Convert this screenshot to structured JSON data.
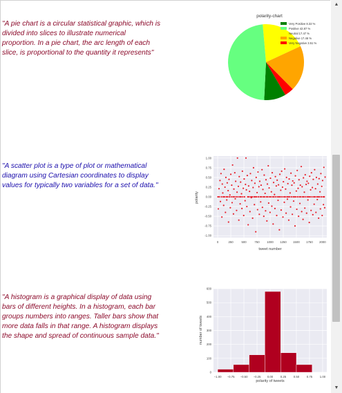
{
  "texts": {
    "pie_quote": "\"A pie chart is a circular statistical graphic, which is divided into slices to illustrate numerical proportion. In a pie chart, the arc length of each slice, is proportional to the quantity it represents\"",
    "scatter_quote": "\"A scatter plot is a type of plot or mathematical diagram using Cartesian coordinates to display values for typically two variables for a set of data.\"",
    "hist_quote": "\"A histogram is a graphical display of data using bars of different heights. In a histogram, each bar groups numbers into ranges. Taller bars show that more data falls in that range. A histogram displays the shape and spread of continuous sample data.\""
  },
  "scrollbar": {
    "up_icon": "triangle-up-icon",
    "down_icon": "triangle-down-icon"
  },
  "chart_data": [
    {
      "type": "pie",
      "title": "polarity-chart",
      "legend_position": "top-right",
      "slices": [
        {
          "label": "Very Positive 8.32 %",
          "value": 8.32,
          "color": "#008000"
        },
        {
          "label": "Positive 42.87 %",
          "value": 42.87,
          "color": "#66ff80"
        },
        {
          "label": "Neutral 17.47 %",
          "value": 17.47,
          "color": "#ffff00"
        },
        {
          "label": "Negative 17.46 %",
          "value": 17.46,
          "color": "#ffa500"
        },
        {
          "label": "Very Negative 3.51 %",
          "value": 3.51,
          "color": "#ff0000"
        }
      ],
      "draw_order": [
        2,
        3,
        4,
        0,
        1
      ],
      "start_angle_deg": -95
    },
    {
      "type": "scatter",
      "xlabel": "tweet number",
      "ylabel": "polarity",
      "xlim": [
        -80,
        2080
      ],
      "ylim": [
        -1.05,
        1.05
      ],
      "xticks": [
        0,
        250,
        500,
        750,
        1000,
        1250,
        1500,
        1750,
        2000
      ],
      "yticks": [
        -1.0,
        -0.75,
        -0.5,
        -0.25,
        0.0,
        0.25,
        0.5,
        0.75,
        1.0
      ],
      "ytick_labels": [
        "-1.00",
        "-0.75",
        "-0.50",
        "-0.25",
        "0.00",
        "0.25",
        "0.50",
        "0.75",
        "1.00"
      ],
      "grid": true,
      "color": "#e8232e",
      "points": [
        [
          5,
          0.0
        ],
        [
          12,
          -0.31
        ],
        [
          25,
          0.21
        ],
        [
          31,
          0.0
        ],
        [
          44,
          0.42
        ],
        [
          52,
          -0.12
        ],
        [
          63,
          0.6
        ],
        [
          71,
          0.0
        ],
        [
          80,
          -0.52
        ],
        [
          88,
          0.33
        ],
        [
          97,
          0.1
        ],
        [
          105,
          0.0
        ],
        [
          114,
          -0.22
        ],
        [
          122,
          0.71
        ],
        [
          131,
          0.0
        ],
        [
          139,
          0.25
        ],
        [
          148,
          -0.4
        ],
        [
          156,
          0.5
        ],
        [
          165,
          0.0
        ],
        [
          173,
          -0.08
        ],
        [
          182,
          0.36
        ],
        [
          190,
          0.0
        ],
        [
          199,
          0.16
        ],
        [
          207,
          -0.65
        ],
        [
          216,
          0.45
        ],
        [
          224,
          0.0
        ],
        [
          233,
          0.05
        ],
        [
          241,
          -0.28
        ],
        [
          250,
          0.58
        ],
        [
          258,
          0.0
        ],
        [
          267,
          0.3
        ],
        [
          275,
          -0.15
        ],
        [
          284,
          0.82
        ],
        [
          292,
          0.0
        ],
        [
          301,
          -0.44
        ],
        [
          309,
          0.2
        ],
        [
          318,
          0.0
        ],
        [
          326,
          0.62
        ],
        [
          335,
          -0.05
        ],
        [
          343,
          0.4
        ],
        [
          352,
          0.0
        ],
        [
          360,
          -0.35
        ],
        [
          369,
          0.12
        ],
        [
          377,
          1.0
        ],
        [
          386,
          0.0
        ],
        [
          394,
          0.27
        ],
        [
          403,
          -0.6
        ],
        [
          411,
          0.52
        ],
        [
          420,
          0.0
        ],
        [
          428,
          -0.18
        ],
        [
          437,
          0.38
        ],
        [
          445,
          0.0
        ],
        [
          454,
          0.08
        ],
        [
          462,
          -0.3
        ],
        [
          471,
          0.66
        ],
        [
          479,
          0.0
        ],
        [
          488,
          0.22
        ],
        [
          496,
          -0.48
        ],
        [
          505,
          0.46
        ],
        [
          513,
          0.0
        ],
        [
          522,
          -0.1
        ],
        [
          530,
          0.32
        ],
        [
          539,
          1.0
        ],
        [
          547,
          0.18
        ],
        [
          556,
          -0.25
        ],
        [
          564,
          0.55
        ],
        [
          573,
          0.0
        ],
        [
          581,
          -0.72
        ],
        [
          590,
          0.28
        ],
        [
          598,
          0.0
        ],
        [
          607,
          0.14
        ],
        [
          615,
          -0.38
        ],
        [
          624,
          0.6
        ],
        [
          632,
          0.0
        ],
        [
          641,
          -0.02
        ],
        [
          649,
          0.42
        ],
        [
          658,
          0.0
        ],
        [
          666,
          -0.55
        ],
        [
          675,
          0.24
        ],
        [
          683,
          0.75
        ],
        [
          692,
          0.0
        ],
        [
          700,
          -0.2
        ],
        [
          709,
          0.35
        ],
        [
          717,
          0.0
        ],
        [
          726,
          -0.9
        ],
        [
          734,
          0.5
        ],
        [
          743,
          0.0
        ],
        [
          751,
          0.11
        ],
        [
          760,
          -0.33
        ],
        [
          768,
          0.64
        ],
        [
          777,
          0.0
        ],
        [
          785,
          0.26
        ],
        [
          794,
          -0.45
        ],
        [
          802,
          0.4
        ],
        [
          811,
          0.0
        ],
        [
          819,
          -0.13
        ],
        [
          828,
          0.3
        ],
        [
          836,
          0.0
        ],
        [
          845,
          0.7
        ],
        [
          853,
          -0.27
        ],
        [
          862,
          0.19
        ],
        [
          870,
          0.0
        ],
        [
          879,
          -0.5
        ],
        [
          887,
          0.56
        ],
        [
          896,
          0.0
        ],
        [
          904,
          0.09
        ],
        [
          913,
          -0.36
        ],
        [
          921,
          0.44
        ],
        [
          930,
          0.0
        ],
        [
          938,
          -0.62
        ],
        [
          947,
          0.33
        ],
        [
          955,
          0.0
        ],
        [
          964,
          0.8
        ],
        [
          972,
          -0.16
        ],
        [
          981,
          0.23
        ],
        [
          989,
          0.0
        ],
        [
          998,
          -0.4
        ],
        [
          1006,
          0.48
        ],
        [
          1015,
          0.0
        ],
        [
          1023,
          0.13
        ],
        [
          1032,
          -0.24
        ],
        [
          1040,
          0.62
        ],
        [
          1049,
          0.0
        ],
        [
          1057,
          -0.7
        ],
        [
          1066,
          0.37
        ],
        [
          1074,
          0.0
        ],
        [
          1083,
          0.06
        ],
        [
          1091,
          -0.3
        ],
        [
          1100,
          0.52
        ],
        [
          1108,
          0.0
        ],
        [
          1117,
          0.28
        ],
        [
          1125,
          -0.48
        ],
        [
          1134,
          0.43
        ],
        [
          1142,
          0.0
        ],
        [
          1151,
          -0.09
        ],
        [
          1159,
          0.31
        ],
        [
          1168,
          0.0
        ],
        [
          1176,
          -0.85
        ],
        [
          1185,
          0.58
        ],
        [
          1193,
          0.0
        ],
        [
          1202,
          0.17
        ],
        [
          1210,
          -0.34
        ],
        [
          1219,
          0.66
        ],
        [
          1227,
          0.0
        ],
        [
          1236,
          0.25
        ],
        [
          1244,
          -0.52
        ],
        [
          1253,
          0.39
        ],
        [
          1261,
          0.0
        ],
        [
          1270,
          -0.14
        ],
        [
          1278,
          0.72
        ],
        [
          1287,
          0.0
        ],
        [
          1295,
          0.2
        ],
        [
          1304,
          -0.42
        ],
        [
          1312,
          0.5
        ],
        [
          1321,
          0.0
        ],
        [
          1329,
          -0.06
        ],
        [
          1338,
          0.34
        ],
        [
          1346,
          0.0
        ],
        [
          1355,
          -0.6
        ],
        [
          1363,
          0.46
        ],
        [
          1372,
          0.0
        ],
        [
          1380,
          0.1
        ],
        [
          1389,
          -0.26
        ],
        [
          1397,
          0.61
        ],
        [
          1406,
          0.0
        ],
        [
          1414,
          0.3
        ],
        [
          1423,
          -0.45
        ],
        [
          1431,
          0.41
        ],
        [
          1440,
          0.0
        ],
        [
          1448,
          -0.11
        ],
        [
          1457,
          0.36
        ],
        [
          1465,
          0.0
        ],
        [
          1474,
          -0.75
        ],
        [
          1482,
          0.54
        ],
        [
          1491,
          0.0
        ],
        [
          1499,
          0.15
        ],
        [
          1508,
          -0.32
        ],
        [
          1516,
          0.68
        ],
        [
          1525,
          0.0
        ],
        [
          1533,
          0.22
        ],
        [
          1542,
          -0.5
        ],
        [
          1550,
          0.44
        ],
        [
          1559,
          0.0
        ],
        [
          1567,
          -0.17
        ],
        [
          1576,
          0.3
        ],
        [
          1584,
          0.0
        ],
        [
          1593,
          0.78
        ],
        [
          1601,
          -0.38
        ],
        [
          1610,
          0.26
        ],
        [
          1618,
          0.0
        ],
        [
          1627,
          -0.58
        ],
        [
          1635,
          0.49
        ],
        [
          1644,
          0.0
        ],
        [
          1652,
          0.12
        ],
        [
          1661,
          -0.29
        ],
        [
          1669,
          0.57
        ],
        [
          1678,
          0.0
        ],
        [
          1686,
          0.32
        ],
        [
          1695,
          -0.42
        ],
        [
          1703,
          0.4
        ],
        [
          1712,
          0.0
        ],
        [
          1720,
          -0.08
        ],
        [
          1729,
          0.35
        ],
        [
          1737,
          0.0
        ],
        [
          1746,
          -0.66
        ],
        [
          1754,
          0.53
        ],
        [
          1763,
          0.0
        ],
        [
          1771,
          0.18
        ],
        [
          1780,
          -0.35
        ],
        [
          1788,
          0.62
        ],
        [
          1797,
          0.0
        ],
        [
          1805,
          0.24
        ],
        [
          1814,
          -0.46
        ],
        [
          1822,
          0.45
        ],
        [
          1831,
          0.0
        ],
        [
          1839,
          -0.19
        ],
        [
          1848,
          0.7
        ],
        [
          1856,
          0.0
        ],
        [
          1865,
          0.21
        ],
        [
          1873,
          -0.4
        ],
        [
          1882,
          0.5
        ],
        [
          1890,
          0.0
        ],
        [
          1899,
          -0.07
        ],
        [
          1907,
          0.33
        ],
        [
          1916,
          0.0
        ],
        [
          1924,
          -0.55
        ],
        [
          1933,
          0.47
        ],
        [
          1941,
          0.0
        ],
        [
          1950,
          0.13
        ],
        [
          1958,
          -0.31
        ],
        [
          1967,
          0.6
        ],
        [
          1975,
          0.0
        ],
        [
          1984,
          0.27
        ],
        [
          1992,
          -0.48
        ],
        [
          2000,
          0.42
        ],
        [
          2008,
          0.0
        ],
        [
          2016,
          -0.2
        ],
        [
          2024,
          0.76
        ],
        [
          2032,
          0.0
        ],
        [
          2040,
          -0.28
        ],
        [
          2048,
          0.51
        ]
      ]
    },
    {
      "type": "bar",
      "subtype": "histogram",
      "xlabel": "polarity of tweets",
      "ylabel": "number of tweets",
      "xlim": [
        -1.0,
        1.0
      ],
      "ylim": [
        0,
        600
      ],
      "xticks": [
        -1.0,
        -0.75,
        -0.5,
        -0.25,
        0.0,
        0.25,
        0.5,
        0.75,
        1.0
      ],
      "xtick_labels": [
        "−1.00",
        "−0.75",
        "−0.50",
        "−0.25",
        "0.00",
        "0.25",
        "0.50",
        "0.75",
        "1.00"
      ],
      "yticks": [
        0,
        100,
        200,
        300,
        400,
        500,
        600
      ],
      "ytick_labels": [
        "0",
        "100",
        "200",
        "300",
        "400",
        "500",
        "600"
      ],
      "grid": true,
      "color": "#b0001f",
      "bins": [
        [
          -1.0,
          -0.7,
          22
        ],
        [
          -0.7,
          -0.4,
          55
        ],
        [
          -0.4,
          -0.1,
          125
        ],
        [
          -0.1,
          0.2,
          580
        ],
        [
          0.2,
          0.5,
          140
        ],
        [
          0.5,
          0.8,
          55
        ],
        [
          0.8,
          1.0,
          0
        ]
      ]
    }
  ]
}
